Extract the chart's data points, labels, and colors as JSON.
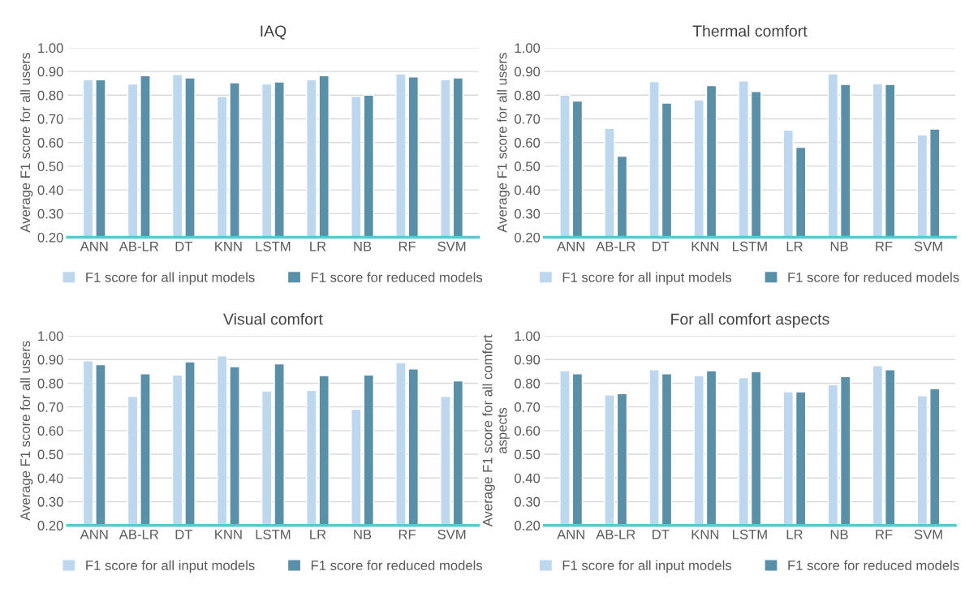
{
  "chart_data": [
    {
      "type": "bar",
      "title": "IAQ",
      "ylabel": "Average F1 score for all users",
      "categories": [
        "ANN",
        "AB-LR",
        "DT",
        "KNN",
        "LSTM",
        "LR",
        "NB",
        "RF",
        "SVM"
      ],
      "ylim": [
        0.2,
        1.0
      ],
      "yticks": [
        {
          "value": 0.2,
          "label": "0.20"
        },
        {
          "value": 0.3,
          "label": "0.30"
        },
        {
          "value": 0.4,
          "label": "0.40"
        },
        {
          "value": 0.5,
          "label": "0.50"
        },
        {
          "value": 0.6,
          "label": "0.60"
        },
        {
          "value": 0.7,
          "label": "0.70"
        },
        {
          "value": 0.8,
          "label": "0.80"
        },
        {
          "value": 0.9,
          "label": "0.90"
        },
        {
          "value": 1.0,
          "label": "1.00"
        }
      ],
      "grid": "y",
      "legend": "bottom",
      "series": [
        {
          "name": "F1 score for all input models",
          "color": "#bdd7ee",
          "values": [
            0.865,
            0.847,
            0.887,
            0.795,
            0.847,
            0.865,
            0.795,
            0.89,
            0.865
          ]
        },
        {
          "name": "F1 score for reduced models",
          "color": "#5a8fa8",
          "values": [
            0.865,
            0.882,
            0.873,
            0.852,
            0.856,
            0.882,
            0.8,
            0.877,
            0.873
          ]
        }
      ]
    },
    {
      "type": "bar",
      "title": "Thermal comfort",
      "ylabel": "Average F1 score for all users",
      "categories": [
        "ANN",
        "AB-LR",
        "DT",
        "KNN",
        "LSTM",
        "LR",
        "NB",
        "RF",
        "SVM"
      ],
      "ylim": [
        0.2,
        1.0
      ],
      "yticks": [
        {
          "value": 0.2,
          "label": "0.20"
        },
        {
          "value": 0.3,
          "label": "0.30"
        },
        {
          "value": 0.4,
          "label": "0.40"
        },
        {
          "value": 0.5,
          "label": "0.50"
        },
        {
          "value": 0.6,
          "label": "0.60"
        },
        {
          "value": 0.7,
          "label": "0.70"
        },
        {
          "value": 0.8,
          "label": "0.80"
        },
        {
          "value": 0.9,
          "label": "0.90"
        },
        {
          "value": 1.0,
          "label": "1.00"
        }
      ],
      "grid": "y",
      "legend": "bottom",
      "series": [
        {
          "name": "F1 score for all input models",
          "color": "#bdd7ee",
          "values": [
            0.8,
            0.66,
            0.857,
            0.78,
            0.86,
            0.653,
            0.89,
            0.848,
            0.632
          ]
        },
        {
          "name": "F1 score for reduced models",
          "color": "#5a8fa8",
          "values": [
            0.775,
            0.542,
            0.767,
            0.84,
            0.815,
            0.58,
            0.845,
            0.845,
            0.657
          ]
        }
      ]
    },
    {
      "type": "bar",
      "title": "Visual comfort",
      "ylabel": "Average F1 score for all users",
      "categories": [
        "ANN",
        "AB-LR",
        "DT",
        "KNN",
        "LSTM",
        "LR",
        "NB",
        "RF",
        "SVM"
      ],
      "ylim": [
        0.2,
        1.0
      ],
      "yticks": [
        {
          "value": 0.2,
          "label": "0.20"
        },
        {
          "value": 0.3,
          "label": "0.30"
        },
        {
          "value": 0.4,
          "label": "0.40"
        },
        {
          "value": 0.5,
          "label": "0.50"
        },
        {
          "value": 0.6,
          "label": "0.60"
        },
        {
          "value": 0.7,
          "label": "0.70"
        },
        {
          "value": 0.8,
          "label": "0.80"
        },
        {
          "value": 0.9,
          "label": "0.90"
        },
        {
          "value": 1.0,
          "label": "1.00"
        }
      ],
      "grid": "y",
      "legend": "bottom",
      "series": [
        {
          "name": "F1 score for all input models",
          "color": "#bdd7ee",
          "values": [
            0.895,
            0.745,
            0.835,
            0.915,
            0.767,
            0.77,
            0.69,
            0.887,
            0.745
          ]
        },
        {
          "name": "F1 score for reduced models",
          "color": "#5a8fa8",
          "values": [
            0.878,
            0.84,
            0.89,
            0.87,
            0.882,
            0.832,
            0.835,
            0.86,
            0.81
          ]
        }
      ]
    },
    {
      "type": "bar",
      "title": "For all comfort aspects",
      "ylabel": "Average F1 score for all comfort\naspects",
      "categories": [
        "ANN",
        "AB-LR",
        "DT",
        "KNN",
        "LSTM",
        "LR",
        "NB",
        "RF",
        "SVM"
      ],
      "ylim": [
        0.2,
        1.0
      ],
      "yticks": [
        {
          "value": 0.2,
          "label": "0.20"
        },
        {
          "value": 0.3,
          "label": "0.30"
        },
        {
          "value": 0.4,
          "label": "0.40"
        },
        {
          "value": 0.5,
          "label": "0.50"
        },
        {
          "value": 0.6,
          "label": "0.60"
        },
        {
          "value": 0.7,
          "label": "0.70"
        },
        {
          "value": 0.8,
          "label": "0.80"
        },
        {
          "value": 0.9,
          "label": "0.90"
        },
        {
          "value": 1.0,
          "label": "1.00"
        }
      ],
      "grid": "y",
      "legend": "bottom",
      "series": [
        {
          "name": "F1 score for all input models",
          "color": "#bdd7ee",
          "values": [
            0.853,
            0.751,
            0.857,
            0.832,
            0.824,
            0.764,
            0.794,
            0.874,
            0.747
          ]
        },
        {
          "name": "F1 score for reduced models",
          "color": "#5a8fa8",
          "values": [
            0.84,
            0.756,
            0.84,
            0.853,
            0.849,
            0.764,
            0.828,
            0.857,
            0.777
          ]
        }
      ]
    }
  ]
}
